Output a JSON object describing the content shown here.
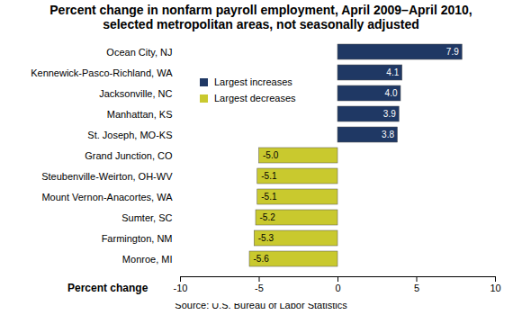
{
  "chart_data": {
    "type": "bar",
    "orientation": "horizontal",
    "title": "Percent change in nonfarm payroll employment, April 2009–April 2010, selected metropolitan areas, not seasonally adjusted",
    "x_label": "Percent change",
    "caption": "Source: U.S. Bureau of Labor Statistics",
    "categories": [
      "Ocean City, NJ",
      "Kennewick-Pasco-Richland, WA",
      "Jacksonville, NC",
      "Manhattan, KS",
      "St. Joseph, MO-KS",
      "Grand Junction, CO",
      "Steubenville-Weirton, OH-WV",
      "Mount Vernon-Anacortes, WA",
      "Sumter, SC",
      "Farmington, NM",
      "Monroe, MI"
    ],
    "series": [
      {
        "name": "Largest increases",
        "color": "#1f3864",
        "values": [
          7.9,
          4.1,
          4.0,
          3.9,
          3.8,
          null,
          null,
          null,
          null,
          null,
          null
        ],
        "value_labels": [
          "7.9",
          "4.1",
          "4.0",
          "3.9",
          "3.8",
          null,
          null,
          null,
          null,
          null,
          null
        ]
      },
      {
        "name": "Largest decreases",
        "color": "#c9c92e",
        "values": [
          null,
          null,
          null,
          null,
          null,
          -5.0,
          -5.1,
          -5.1,
          -5.2,
          -5.3,
          -5.6
        ],
        "value_labels": [
          null,
          null,
          null,
          null,
          null,
          "-5.0",
          "-5.1",
          "-5.1",
          "-5.2",
          "-5.3",
          "-5.6"
        ]
      }
    ],
    "xlim": [
      -10,
      10
    ],
    "xticks": [
      -10,
      -5,
      0,
      5,
      10
    ],
    "data_labels": true,
    "legend": "top-left",
    "grid": false
  }
}
